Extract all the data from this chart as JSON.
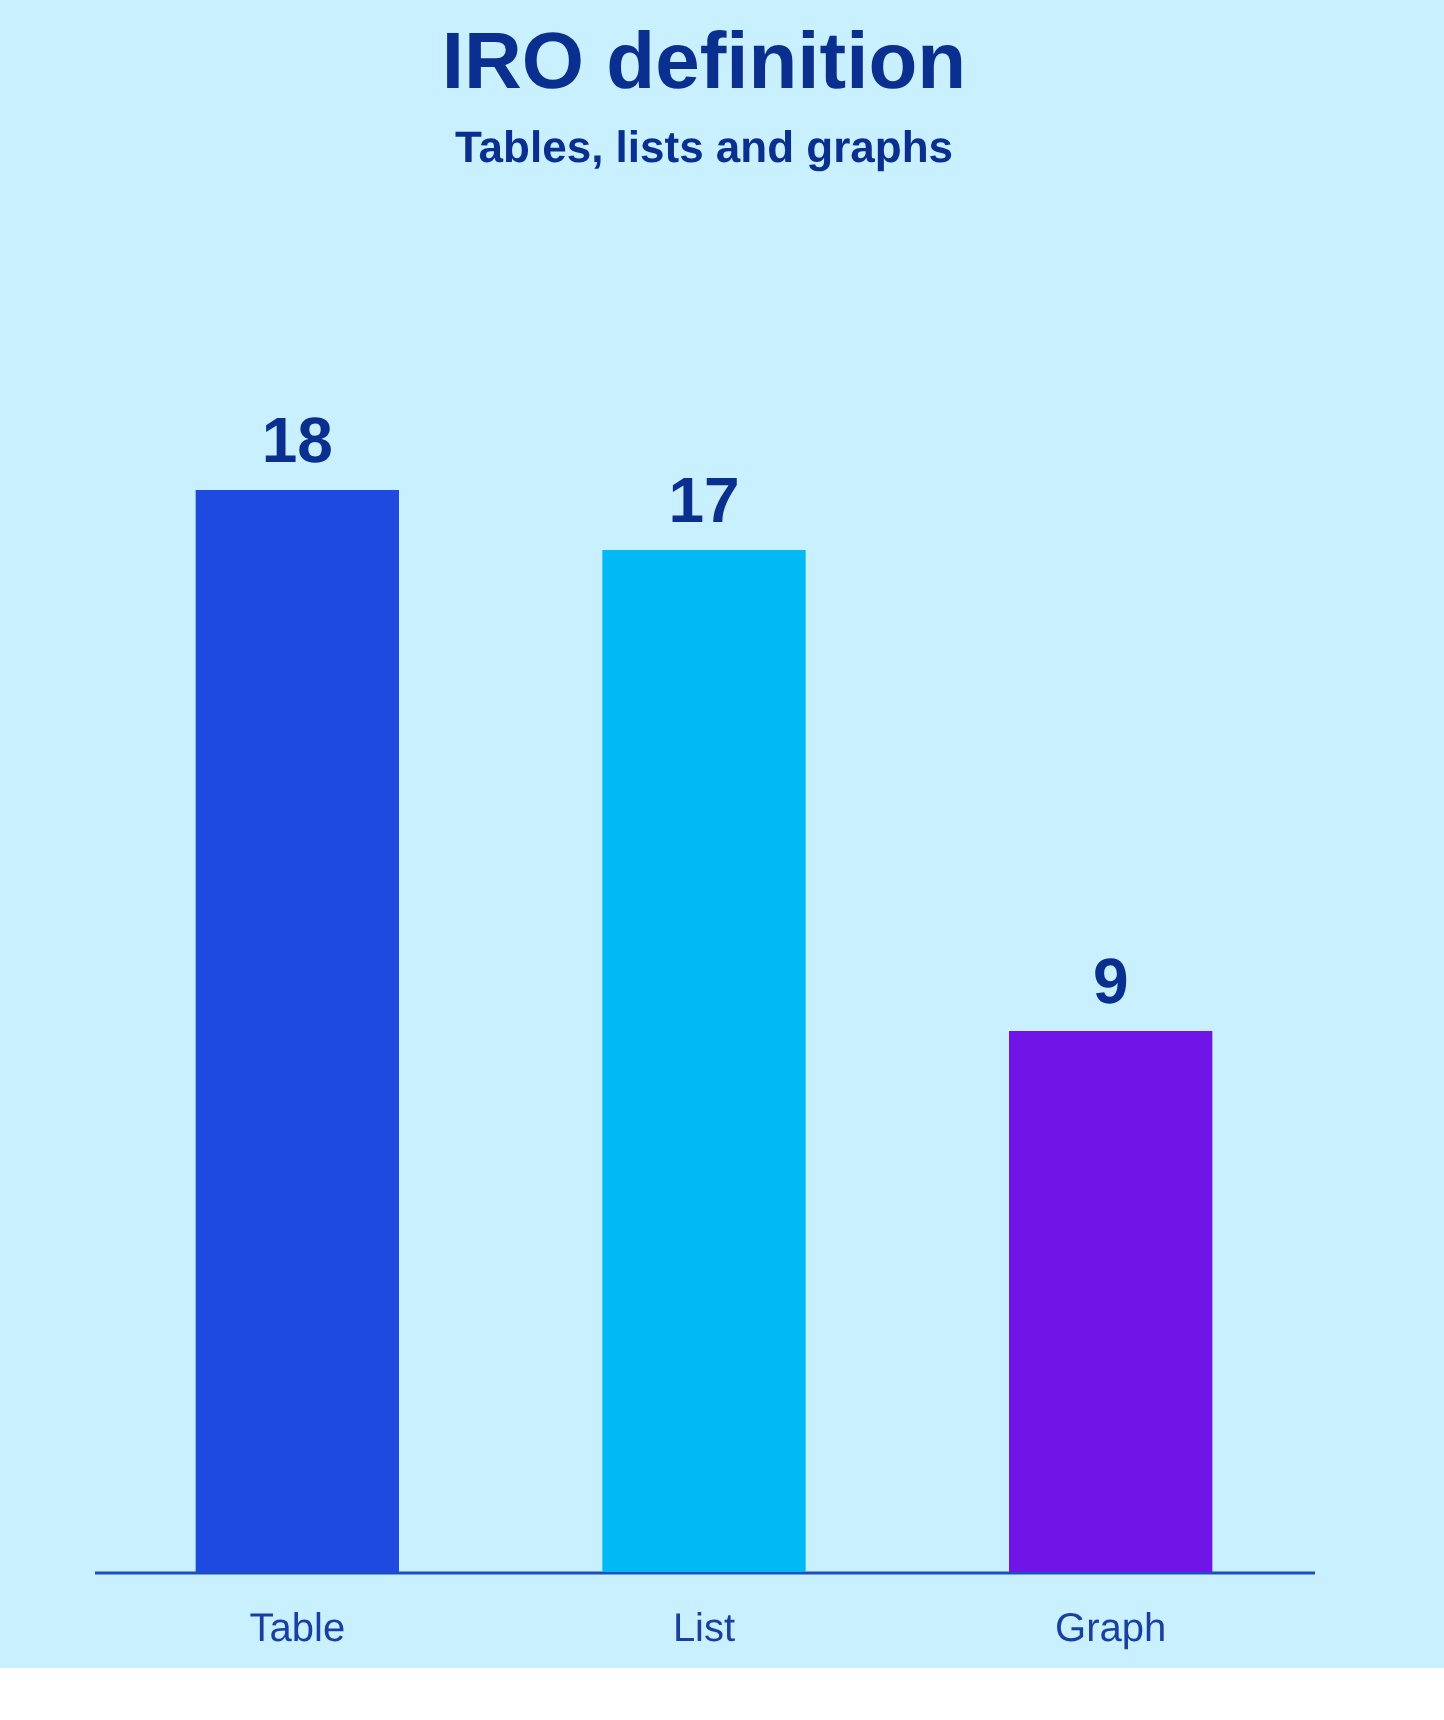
{
  "chart_data": {
    "type": "bar",
    "title": "IRO definition",
    "subtitle": "Tables, lists and graphs",
    "categories": [
      "Table",
      "List",
      "Graph"
    ],
    "values": [
      18,
      17,
      9
    ],
    "colors": [
      "#1f4ae0",
      "#00b9f5",
      "#7014e8"
    ],
    "data_labels": true,
    "tick_labels": "x",
    "grid": false
  }
}
